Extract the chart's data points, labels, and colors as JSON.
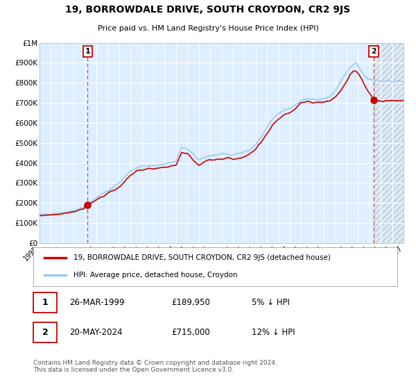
{
  "title": "19, BORROWDALE DRIVE, SOUTH CROYDON, CR2 9JS",
  "subtitle": "Price paid vs. HM Land Registry's House Price Index (HPI)",
  "legend_line1": "19, BORROWDALE DRIVE, SOUTH CROYDON, CR2 9JS (detached house)",
  "legend_line2": "HPI: Average price, detached house, Croydon",
  "annotation1": {
    "label": "1",
    "date_idx": 1999.23,
    "price": 189950
  },
  "annotation2": {
    "label": "2",
    "date_idx": 2024.38,
    "price": 715000
  },
  "table": [
    {
      "num": "1",
      "date": "26-MAR-1999",
      "price": "£189,950",
      "note": "5% ↓ HPI"
    },
    {
      "num": "2",
      "date": "20-MAY-2024",
      "price": "£715,000",
      "note": "12% ↓ HPI"
    }
  ],
  "footer": "Contains HM Land Registry data © Crown copyright and database right 2024.\nThis data is licensed under the Open Government Licence v3.0.",
  "xlim": [
    1995.0,
    2027.0
  ],
  "ylim": [
    0,
    1000000
  ],
  "yticks": [
    0,
    100000,
    200000,
    300000,
    400000,
    500000,
    600000,
    700000,
    800000,
    900000,
    1000000
  ],
  "ytick_labels": [
    "£0",
    "£100K",
    "£200K",
    "£300K",
    "£400K",
    "£500K",
    "£600K",
    "£700K",
    "£800K",
    "£900K",
    "£1M"
  ],
  "xticks": [
    1995,
    1996,
    1997,
    1998,
    1999,
    2000,
    2001,
    2002,
    2003,
    2004,
    2005,
    2006,
    2007,
    2008,
    2009,
    2010,
    2011,
    2012,
    2013,
    2014,
    2015,
    2016,
    2017,
    2018,
    2019,
    2020,
    2021,
    2022,
    2023,
    2024,
    2025,
    2026,
    2027
  ],
  "bg_color": "#ddeeff",
  "grid_color": "#ffffff",
  "red_line_color": "#cc0000",
  "blue_line_color": "#99ccee",
  "dashed_line_color": "#dd4444",
  "dot_color": "#cc0000",
  "hatch_bg": "#e8f0f8",
  "hatch_line": "#aabbcc"
}
